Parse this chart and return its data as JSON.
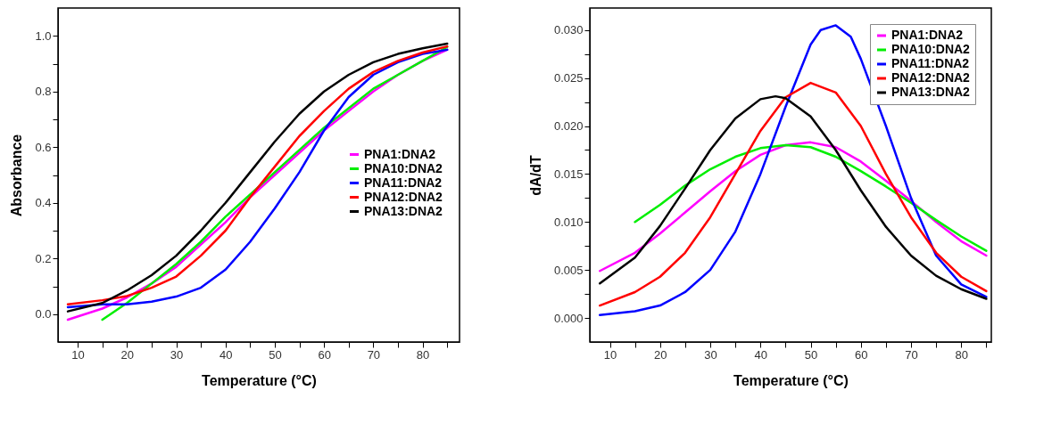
{
  "chart_data": [
    {
      "type": "line",
      "xlabel": "Temperature (°C)",
      "ylabel": "Absorbance",
      "xlim": [
        6,
        87.5
      ],
      "ylim": [
        -0.1,
        1.1
      ],
      "xticks": [
        10,
        {
          "value": 15,
          "label": null
        },
        20,
        {
          "value": 25,
          "label": null
        },
        30,
        {
          "value": 35,
          "label": null
        },
        40,
        {
          "value": 45,
          "label": null
        },
        50,
        {
          "value": 55,
          "label": null
        },
        60,
        {
          "value": 65,
          "label": null
        },
        70,
        {
          "value": 75,
          "label": null
        },
        80,
        {
          "value": 85,
          "label": null
        }
      ],
      "yticks": [
        {
          "value": 0,
          "label": "0.0"
        },
        {
          "value": 0.1,
          "label": null
        },
        0.2,
        {
          "value": 0.3,
          "label": null
        },
        0.4,
        {
          "value": 0.5,
          "label": null
        },
        0.6,
        {
          "value": 0.7,
          "label": null
        },
        0.8,
        {
          "value": 0.9,
          "label": null
        },
        {
          "value": 1,
          "label": "1.0"
        }
      ],
      "grid": false,
      "legend": "right",
      "line_style": "solid",
      "marker": "none",
      "x": [
        8,
        15,
        20,
        25,
        30,
        35,
        40,
        45,
        50,
        55,
        60,
        65,
        70,
        75,
        80,
        85
      ],
      "series": [
        {
          "name": "PNA1:DNA2",
          "color": "#ff00ff",
          "values": [
            -0.02,
            0.02,
            0.06,
            0.11,
            0.17,
            0.25,
            0.33,
            0.42,
            0.5,
            0.58,
            0.66,
            0.73,
            0.8,
            0.86,
            0.91,
            0.95
          ]
        },
        {
          "name": "PNA10:DNA2",
          "color": "#00ee00",
          "x": [
            15,
            20,
            25,
            30,
            35,
            40,
            45,
            50,
            55,
            60,
            65,
            70,
            75,
            80,
            85
          ],
          "values": [
            -0.02,
            0.04,
            0.11,
            0.18,
            0.26,
            0.35,
            0.43,
            0.51,
            0.59,
            0.67,
            0.74,
            0.81,
            0.86,
            0.91,
            0.96
          ]
        },
        {
          "name": "PNA11:DNA2",
          "color": "#0000ff",
          "values": [
            0.025,
            0.035,
            0.035,
            0.045,
            0.063,
            0.095,
            0.16,
            0.26,
            0.38,
            0.51,
            0.66,
            0.78,
            0.86,
            0.905,
            0.935,
            0.95
          ]
        },
        {
          "name": "PNA12:DNA2",
          "color": "#ff0000",
          "values": [
            0.035,
            0.05,
            0.065,
            0.095,
            0.135,
            0.21,
            0.3,
            0.42,
            0.53,
            0.64,
            0.73,
            0.81,
            0.87,
            0.91,
            0.94,
            0.962
          ]
        },
        {
          "name": "PNA13:DNA2",
          "color": "#000000",
          "values": [
            0.01,
            0.04,
            0.085,
            0.14,
            0.21,
            0.3,
            0.4,
            0.51,
            0.62,
            0.72,
            0.8,
            0.86,
            0.905,
            0.935,
            0.955,
            0.972
          ]
        }
      ]
    },
    {
      "type": "line",
      "xlabel": "Temperature (°C)",
      "ylabel": "dA/dT",
      "xlim": [
        6,
        86
      ],
      "ylim": [
        -0.0025,
        0.0323
      ],
      "xticks": [
        10,
        {
          "value": 15,
          "label": null
        },
        20,
        {
          "value": 25,
          "label": null
        },
        30,
        {
          "value": 35,
          "label": null
        },
        40,
        {
          "value": 45,
          "label": null
        },
        50,
        {
          "value": 55,
          "label": null
        },
        60,
        {
          "value": 65,
          "label": null
        },
        70,
        {
          "value": 75,
          "label": null
        },
        80,
        {
          "value": 85,
          "label": null
        }
      ],
      "yticks": [
        {
          "value": 0,
          "label": "0.000"
        },
        {
          "value": 0.0025,
          "label": null
        },
        {
          "value": 0.005,
          "label": "0.005"
        },
        {
          "value": 0.0075,
          "label": null
        },
        {
          "value": 0.01,
          "label": "0.010"
        },
        {
          "value": 0.0125,
          "label": null
        },
        {
          "value": 0.015,
          "label": "0.015"
        },
        {
          "value": 0.0175,
          "label": null
        },
        {
          "value": 0.02,
          "label": "0.020"
        },
        {
          "value": 0.0225,
          "label": null
        },
        {
          "value": 0.025,
          "label": "0.025"
        },
        {
          "value": 0.0275,
          "label": null
        },
        {
          "value": 0.03,
          "label": "0.030"
        }
      ],
      "grid": false,
      "legend": "top right",
      "line_style": "solid",
      "marker": "none",
      "x": [
        8,
        15,
        20,
        25,
        30,
        35,
        40,
        45,
        50,
        55,
        60,
        65,
        70,
        75,
        80,
        85
      ],
      "series": [
        {
          "name": "PNA1:DNA2",
          "color": "#ff00ff",
          "values": [
            0.0049,
            0.0068,
            0.0088,
            0.011,
            0.0132,
            0.0153,
            0.017,
            0.018,
            0.0183,
            0.0178,
            0.0163,
            0.0143,
            0.0122,
            0.01,
            0.008,
            0.0065
          ]
        },
        {
          "name": "PNA10:DNA2",
          "color": "#00ee00",
          "x": [
            15,
            20,
            25,
            30,
            35,
            40,
            45,
            50,
            55,
            60,
            65,
            70,
            75,
            80,
            85
          ],
          "values": [
            0.01,
            0.0118,
            0.0138,
            0.0155,
            0.0168,
            0.0177,
            0.018,
            0.0178,
            0.0168,
            0.0153,
            0.0137,
            0.012,
            0.0102,
            0.0085,
            0.007
          ]
        },
        {
          "name": "PNA11:DNA2",
          "color": "#0000ff",
          "x": [
            8,
            15,
            20,
            25,
            30,
            35,
            40,
            45,
            50,
            52,
            55,
            58,
            60,
            65,
            70,
            75,
            80,
            85
          ],
          "values": [
            0.0003,
            0.0007,
            0.0013,
            0.0027,
            0.005,
            0.009,
            0.015,
            0.022,
            0.0285,
            0.03,
            0.0305,
            0.0293,
            0.027,
            0.02,
            0.0125,
            0.0065,
            0.0035,
            0.0022
          ]
        },
        {
          "name": "PNA12:DNA2",
          "color": "#ff0000",
          "values": [
            0.0013,
            0.0027,
            0.0043,
            0.0068,
            0.0105,
            0.015,
            0.0195,
            0.023,
            0.0245,
            0.0235,
            0.02,
            0.015,
            0.0105,
            0.0068,
            0.0043,
            0.0028
          ]
        },
        {
          "name": "PNA13:DNA2",
          "color": "#000000",
          "x": [
            8,
            15,
            20,
            25,
            30,
            35,
            40,
            43,
            45,
            50,
            55,
            60,
            65,
            70,
            75,
            80,
            85
          ],
          "values": [
            0.0036,
            0.0063,
            0.0096,
            0.0135,
            0.0175,
            0.0208,
            0.0228,
            0.0231,
            0.0229,
            0.021,
            0.0175,
            0.0133,
            0.0095,
            0.0065,
            0.0044,
            0.003,
            0.002
          ]
        }
      ]
    }
  ]
}
